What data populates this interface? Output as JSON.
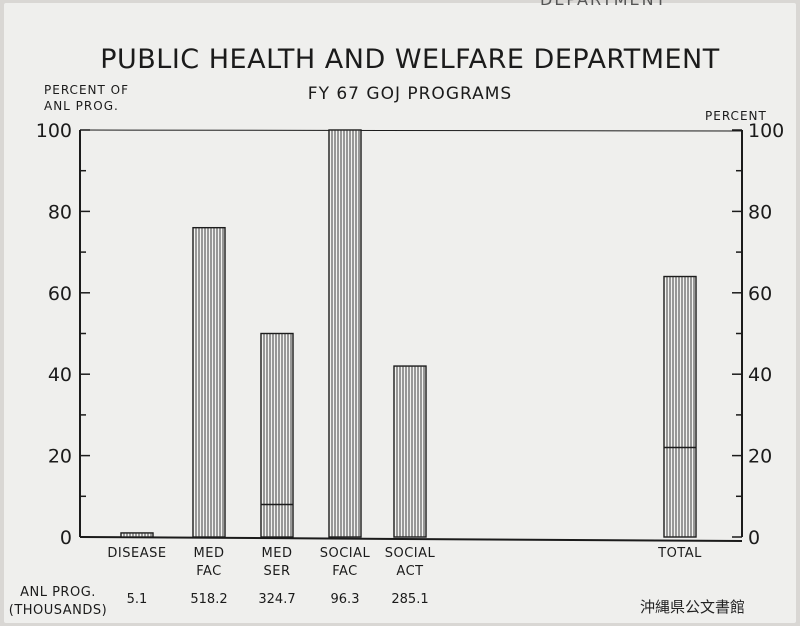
{
  "header_text": "DEPARTMENT",
  "title": "PUBLIC HEALTH AND WELFARE DEPARTMENT",
  "subtitle": "FY 67 GOJ PROGRAMS",
  "left_axis_label": [
    "PERCENT OF",
    "ANL PROG."
  ],
  "right_axis_label": "PERCENT",
  "row_label": [
    "ANL PROG.",
    "(THOUSANDS)"
  ],
  "watermark": "沖縄県公文書館",
  "chart_data": {
    "type": "bar",
    "title": "PUBLIC HEALTH AND WELFARE DEPARTMENT",
    "subtitle": "FY 67 GOJ PROGRAMS",
    "ylabel": "PERCENT OF ANL PROG.",
    "ylabel_right": "PERCENT",
    "ylim": [
      0,
      100
    ],
    "yticks": [
      0,
      20,
      40,
      60,
      80,
      100
    ],
    "grid": false,
    "categories": [
      {
        "lines": [
          "DISEASE"
        ],
        "value": 1,
        "marker": null,
        "anl_prog": "5.1"
      },
      {
        "lines": [
          "MED",
          "FAC"
        ],
        "value": 76,
        "marker": null,
        "anl_prog": "518.2"
      },
      {
        "lines": [
          "MED",
          "SER"
        ],
        "value": 50,
        "marker": 8,
        "anl_prog": "324.7"
      },
      {
        "lines": [
          "SOCIAL",
          "FAC"
        ],
        "value": 100,
        "marker": null,
        "anl_prog": "96.3"
      },
      {
        "lines": [
          "SOCIAL",
          "ACT"
        ],
        "value": 42,
        "marker": null,
        "anl_prog": "285.1"
      },
      {
        "lines": [
          "TOTAL"
        ],
        "value": 64,
        "marker": 22,
        "anl_prog": ""
      }
    ]
  }
}
